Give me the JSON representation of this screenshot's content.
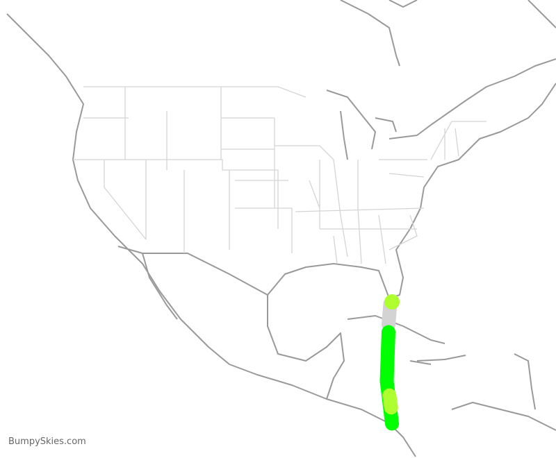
{
  "watermark": "BumpySkies.com",
  "route": {
    "colors": {
      "smooth": "#00ff00",
      "light": "#adff2f",
      "no_data": "#d3d3d3"
    },
    "segments": [
      {
        "level": "light",
        "points": [
          [
            -80.6,
            28.4
          ]
        ]
      },
      {
        "level": "no_data",
        "points": [
          [
            -80.8,
            28.2
          ],
          [
            -81.0,
            26.0
          ]
        ]
      },
      {
        "level": "smooth",
        "points": [
          [
            -81.0,
            25.2
          ],
          [
            -81.2,
            20.0
          ],
          [
            -80.6,
            15.5
          ]
        ]
      },
      {
        "level": "light",
        "points": [
          [
            -80.9,
            18.5
          ],
          [
            -80.7,
            17.2
          ]
        ]
      }
    ]
  }
}
